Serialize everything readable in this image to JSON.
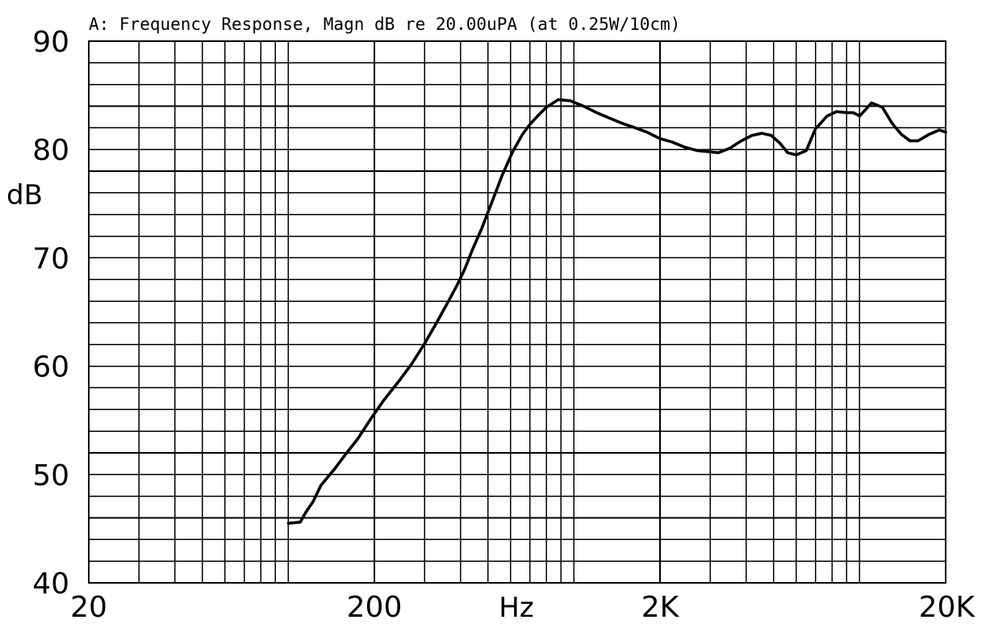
{
  "chart_data": {
    "type": "line",
    "title": "A: Frequency Response, Magn dB re 20.00uPA  (at 0.25W/10cm)",
    "xlabel": "Hz",
    "ylabel": "dB",
    "x_scale": "log",
    "xlim": [
      20,
      20000
    ],
    "ylim": [
      40,
      90
    ],
    "grid": true,
    "x_ticks": [
      {
        "value": 20,
        "label": "20"
      },
      {
        "value": 200,
        "label": "200"
      },
      {
        "value": 2000,
        "label": "2K"
      },
      {
        "value": 20000,
        "label": "20K"
      }
    ],
    "y_ticks": [
      {
        "value": 90,
        "label": "90"
      },
      {
        "value": 80,
        "label": "80"
      },
      {
        "value": 70,
        "label": "70"
      },
      {
        "value": 60,
        "label": "60"
      },
      {
        "value": 50,
        "label": "50"
      },
      {
        "value": 40,
        "label": "40"
      }
    ],
    "series": [
      {
        "x": [
          100,
          110,
          115,
          122,
          130,
          145,
          160,
          175,
          195,
          215,
          245,
          270,
          300,
          330,
          360,
          390,
          415,
          440,
          475,
          515,
          560,
          610,
          660,
          700,
          740,
          800,
          880,
          970,
          1080,
          1200,
          1330,
          1480,
          1600,
          1800,
          2000,
          2200,
          2450,
          2700,
          2950,
          3200,
          3500,
          3850,
          4200,
          4550,
          4900,
          5250,
          5600,
          6000,
          6500,
          7000,
          7700,
          8300,
          9000,
          9500,
          10000,
          10500,
          11000,
          12000,
          13000,
          14000,
          15000,
          16000,
          17500,
          19000,
          20000
        ],
        "y": [
          45.5,
          45.6,
          46.5,
          47.5,
          49.0,
          50.5,
          52.0,
          53.3,
          55.2,
          56.8,
          58.7,
          60.2,
          62.1,
          64.0,
          65.8,
          67.5,
          69.0,
          70.7,
          72.7,
          75.1,
          77.6,
          79.8,
          81.4,
          82.3,
          83.0,
          83.9,
          84.6,
          84.5,
          84.0,
          83.4,
          82.9,
          82.4,
          82.1,
          81.6,
          81.0,
          80.7,
          80.2,
          79.9,
          79.8,
          79.7,
          80.1,
          80.8,
          81.3,
          81.5,
          81.3,
          80.6,
          79.7,
          79.5,
          79.9,
          81.9,
          83.1,
          83.5,
          83.4,
          83.4,
          83.1,
          83.7,
          84.3,
          83.9,
          82.4,
          81.4,
          80.8,
          80.8,
          81.4,
          81.8,
          81.6
        ]
      }
    ]
  }
}
